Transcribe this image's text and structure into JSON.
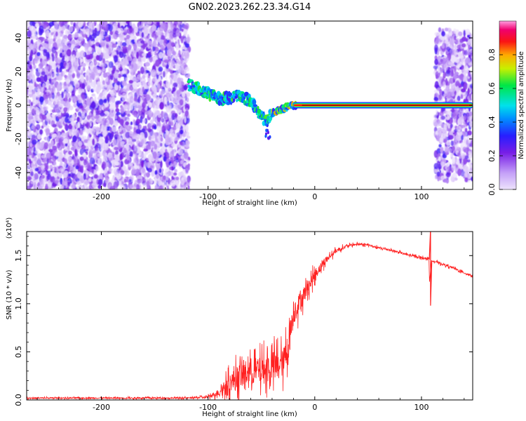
{
  "title": "GN02.2023.262.23.34.G14",
  "colors": {
    "snr_line": "#ff2020",
    "carrier": "#e0004a",
    "noise": "#7a22e8"
  },
  "chart_data": [
    {
      "type": "heatmap",
      "xlabel": "Height of straight line (km)",
      "ylabel": "Frequency (Hz)",
      "xlim": [
        -270,
        148
      ],
      "ylim": [
        -50,
        50
      ],
      "x_ticks": [
        -200,
        -100,
        0,
        100
      ],
      "x_tick_labels": [
        "-200",
        "-100",
        "0",
        "100"
      ],
      "y_ticks": [
        -40,
        -20,
        0,
        20,
        40
      ],
      "y_tick_labels": [
        "-40",
        "-20",
        "0",
        "20",
        "40"
      ],
      "colorbar": {
        "label": "Normalized spectral amplitude",
        "range": [
          0,
          1
        ],
        "ticks": [
          0.0,
          0.2,
          0.4,
          0.6,
          0.8
        ],
        "tick_labels": [
          "0.0",
          "0.2",
          "0.4",
          "0.6",
          "0.8"
        ],
        "colormap": "rainbow (purple → blue → cyan → green → yellow → red → magenta)"
      },
      "regions": [
        {
          "description": "noise",
          "x_range": [
            -270,
            -118
          ],
          "freq_range": [
            -50,
            50
          ],
          "amplitude": 0.15
        },
        {
          "description": "signal band",
          "x_range": [
            -118,
            -40
          ],
          "freq_range": [
            -20,
            15
          ],
          "amplitude": 0.45
        },
        {
          "description": "carrier line",
          "x_range": [
            -40,
            148
          ],
          "freq_hz": 0,
          "amplitude": 0.95
        },
        {
          "description": "noise",
          "x_range": [
            113,
            148
          ],
          "freq_range": [
            -45,
            45
          ],
          "amplitude": 0.15
        }
      ],
      "ridge": {
        "x": [
          -118,
          -110,
          -100,
          -90,
          -80,
          -70,
          -60,
          -50,
          -45,
          -40,
          -30,
          -20,
          -10,
          0
        ],
        "freq": [
          12,
          10,
          7,
          4,
          4,
          6,
          2,
          -7,
          -9,
          -5,
          -2,
          0,
          1,
          1
        ]
      }
    },
    {
      "type": "line",
      "xlabel": "Height of straight line (km)",
      "ylabel": "SNR (10 * v/v)",
      "y_multiplier": "(x10⁴)",
      "xlim": [
        -270,
        148
      ],
      "ylim": [
        0,
        1.75
      ],
      "x_ticks": [
        -200,
        -100,
        0,
        100
      ],
      "x_tick_labels": [
        "-200",
        "-100",
        "0",
        "100"
      ],
      "y_ticks": [
        0,
        0.5,
        1.0,
        1.5
      ],
      "y_tick_labels": [
        "0.0",
        "0.5",
        "1.0",
        "1.5"
      ],
      "series": [
        {
          "x": [
            -270,
            -200,
            -150,
            -120,
            -100,
            -90,
            -80,
            -70,
            -60,
            -50,
            -40,
            -30,
            -25,
            -20,
            -15,
            -10,
            -5,
            0,
            10,
            20,
            30,
            40,
            50,
            60,
            70,
            80,
            90,
            100,
            105,
            107,
            108,
            109,
            110,
            120,
            130,
            140,
            148
          ],
          "y": [
            0.02,
            0.02,
            0.02,
            0.02,
            0.03,
            0.08,
            0.18,
            0.25,
            0.3,
            0.3,
            0.35,
            0.38,
            0.55,
            0.9,
            1.0,
            1.1,
            1.2,
            1.3,
            1.45,
            1.55,
            1.6,
            1.62,
            1.61,
            1.58,
            1.56,
            1.53,
            1.5,
            1.48,
            1.47,
            1.46,
            1.0,
            1.45,
            1.45,
            1.41,
            1.37,
            1.32,
            1.29
          ],
          "noise": [
            0.01,
            0.01,
            0.01,
            0.01,
            0.02,
            0.05,
            0.13,
            0.18,
            0.2,
            0.2,
            0.22,
            0.2,
            0.25,
            0.18,
            0.15,
            0.12,
            0.1,
            0.08,
            0.05,
            0.03,
            0.02,
            0.015,
            0.015,
            0.015,
            0.015,
            0.015,
            0.015,
            0.015,
            0.015,
            0.015,
            0.0,
            0.015,
            0.015,
            0.015,
            0.015,
            0.015,
            0.015
          ],
          "spike": {
            "x": 108.5,
            "y_min": 0.98,
            "y_max": 1.78
          }
        }
      ]
    }
  ]
}
